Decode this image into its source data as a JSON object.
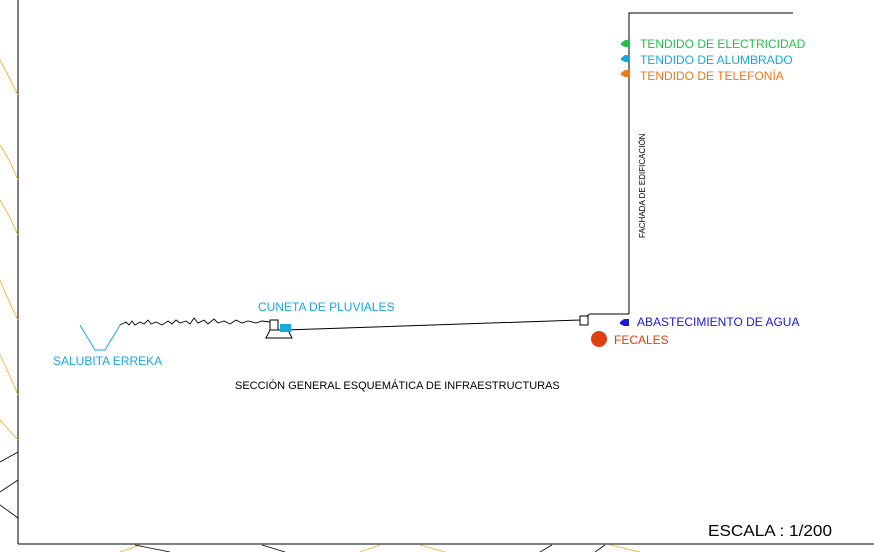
{
  "labels": {
    "electricidad": "TENDIDO DE ELECTRICIDAD",
    "alumbrado": "TENDIDO DE ALUMBRADO",
    "telefonia": "TENDIDO DE TELEFONÍA",
    "fachada": "FACHADA DE EDIFICACIÓN",
    "cuneta": "CUNETA DE PLUVIALES",
    "agua": "ABASTECIMIENTO DE AGUA",
    "fecales": "FECALES",
    "salubita": "SALUBITA ERREKA",
    "seccion": "SECCIÓN GENERAL ESQUEMÁTICA DE INFRAESTRUCTURAS",
    "escala": "ESCALA : 1/200"
  },
  "colors": {
    "electricidad": "#22c04a",
    "alumbrado": "#18a8e0",
    "telefonia": "#f07818",
    "cuneta": "#18a8e0",
    "agua": "#1a1ad0",
    "fecales": "#e04010",
    "salubita": "#18a8e0",
    "contour": "#e8b020",
    "line": "#000000"
  }
}
